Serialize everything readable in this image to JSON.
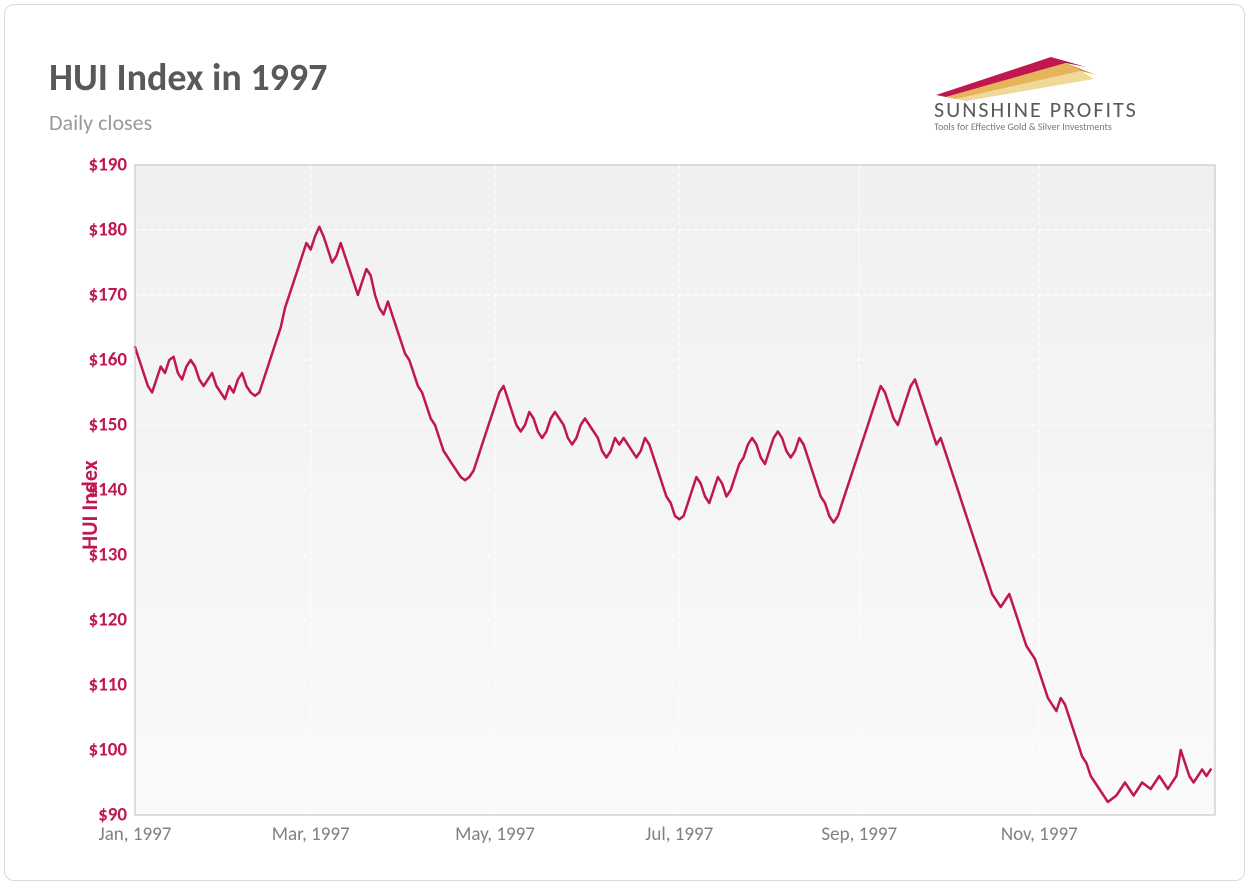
{
  "title": "HUI Index in 1997",
  "subtitle": "Daily closes",
  "logo": {
    "main": "SUNSHINE PROFITS",
    "sub": "Tools for Effective Gold & Silver Investments",
    "ray_colors": [
      "#c0174e",
      "#e6b55a",
      "#f0d898",
      "#d4c088"
    ]
  },
  "chart": {
    "type": "line",
    "ylabel": "HUI Index",
    "title_color": "#595959",
    "subtitle_color": "#999999",
    "axis_label_color": "#c0174e",
    "tick_color_y": "#c0174e",
    "tick_color_x": "#808080",
    "line_color": "#c0174e",
    "line_width": 2.5,
    "plot_bg": "#f0f0f0",
    "plot_gradient_bottom": "#fafafa",
    "grid_color": "#ffffff",
    "grid_dash": "4 4",
    "border_color": "#bfbfbf",
    "ylim": [
      90,
      190
    ],
    "yticks": [
      90,
      100,
      110,
      120,
      130,
      140,
      150,
      160,
      170,
      180,
      190
    ],
    "ytick_labels": [
      "$90",
      "$100",
      "$110",
      "$120",
      "$130",
      "$140",
      "$150",
      "$160",
      "$170",
      "$180",
      "$190"
    ],
    "xticks": [
      0,
      41,
      84,
      127,
      169,
      211
    ],
    "xtick_labels": [
      "Jan, 1997",
      "Mar, 1997",
      "May, 1997",
      "Jul, 1997",
      "Sep, 1997",
      "Nov, 1997"
    ],
    "xlim": [
      0,
      252
    ],
    "values": [
      162,
      160,
      158,
      156,
      155,
      157,
      159,
      158,
      160,
      160.5,
      158,
      157,
      159,
      160,
      159,
      157,
      156,
      157,
      158,
      156,
      155,
      154,
      156,
      155,
      157,
      158,
      156,
      155,
      154.5,
      155,
      157,
      159,
      161,
      163,
      165,
      168,
      170,
      172,
      174,
      176,
      178,
      177,
      179,
      180.5,
      179,
      177,
      175,
      176,
      178,
      176,
      174,
      172,
      170,
      172,
      174,
      173,
      170,
      168,
      167,
      169,
      167,
      165,
      163,
      161,
      160,
      158,
      156,
      155,
      153,
      151,
      150,
      148,
      146,
      145,
      144,
      143,
      142,
      141.5,
      142,
      143,
      145,
      147,
      149,
      151,
      153,
      155,
      156,
      154,
      152,
      150,
      149,
      150,
      152,
      151,
      149,
      148,
      149,
      151,
      152,
      151,
      150,
      148,
      147,
      148,
      150,
      151,
      150,
      149,
      148,
      146,
      145,
      146,
      148,
      147,
      148,
      147,
      146,
      145,
      146,
      148,
      147,
      145,
      143,
      141,
      139,
      138,
      136,
      135.5,
      136,
      138,
      140,
      142,
      141,
      139,
      138,
      140,
      142,
      141,
      139,
      140,
      142,
      144,
      145,
      147,
      148,
      147,
      145,
      144,
      146,
      148,
      149,
      148,
      146,
      145,
      146,
      148,
      147,
      145,
      143,
      141,
      139,
      138,
      136,
      135,
      136,
      138,
      140,
      142,
      144,
      146,
      148,
      150,
      152,
      154,
      156,
      155,
      153,
      151,
      150,
      152,
      154,
      156,
      157,
      155,
      153,
      151,
      149,
      147,
      148,
      146,
      144,
      142,
      140,
      138,
      136,
      134,
      132,
      130,
      128,
      126,
      124,
      123,
      122,
      123,
      124,
      122,
      120,
      118,
      116,
      115,
      114,
      112,
      110,
      108,
      107,
      106,
      108,
      107,
      105,
      103,
      101,
      99,
      98,
      96,
      95,
      94,
      93,
      92,
      92.5,
      93,
      94,
      95,
      94,
      93,
      94,
      95,
      94.5,
      94,
      95,
      96,
      95,
      94,
      95,
      96,
      100,
      98,
      96,
      95,
      96,
      97,
      96,
      97
    ]
  }
}
